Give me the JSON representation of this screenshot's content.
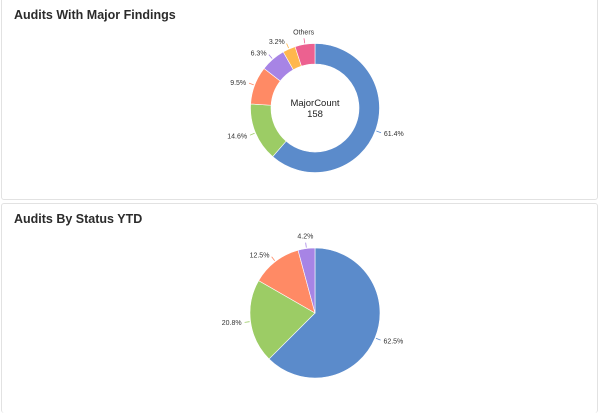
{
  "cards": {
    "major": {
      "title": "Audits With Major Findings",
      "center_label": "MajorCount",
      "center_value": "158"
    },
    "status": {
      "title": "Audits By Status YTD"
    }
  },
  "chart_data": [
    {
      "type": "pie",
      "subtype": "donut",
      "title": "Audits With Major Findings",
      "center_text": [
        "MajorCount",
        "158"
      ],
      "total": 158,
      "legend": "none",
      "slices": [
        {
          "label": "61.4%",
          "value": 61.4,
          "color": "#5b8bcb"
        },
        {
          "label": "14.6%",
          "value": 14.6,
          "color": "#9ccc65"
        },
        {
          "label": "9.5%",
          "value": 9.5,
          "color": "#ff8a65"
        },
        {
          "label": "6.3%",
          "value": 6.3,
          "color": "#a784e5"
        },
        {
          "label": "3.2%",
          "value": 3.2,
          "color": "#ffb74d"
        },
        {
          "label": "Others",
          "value": 5.0,
          "color": "#ec6190"
        }
      ]
    },
    {
      "type": "pie",
      "title": "Audits By Status YTD",
      "legend": "none",
      "slices": [
        {
          "label": "62.5%",
          "value": 62.5,
          "color": "#5b8bcb"
        },
        {
          "label": "20.8%",
          "value": 20.8,
          "color": "#9ccc65"
        },
        {
          "label": "12.5%",
          "value": 12.5,
          "color": "#ff8a65"
        },
        {
          "label": "4.2%",
          "value": 4.2,
          "color": "#a784e5"
        }
      ]
    }
  ]
}
